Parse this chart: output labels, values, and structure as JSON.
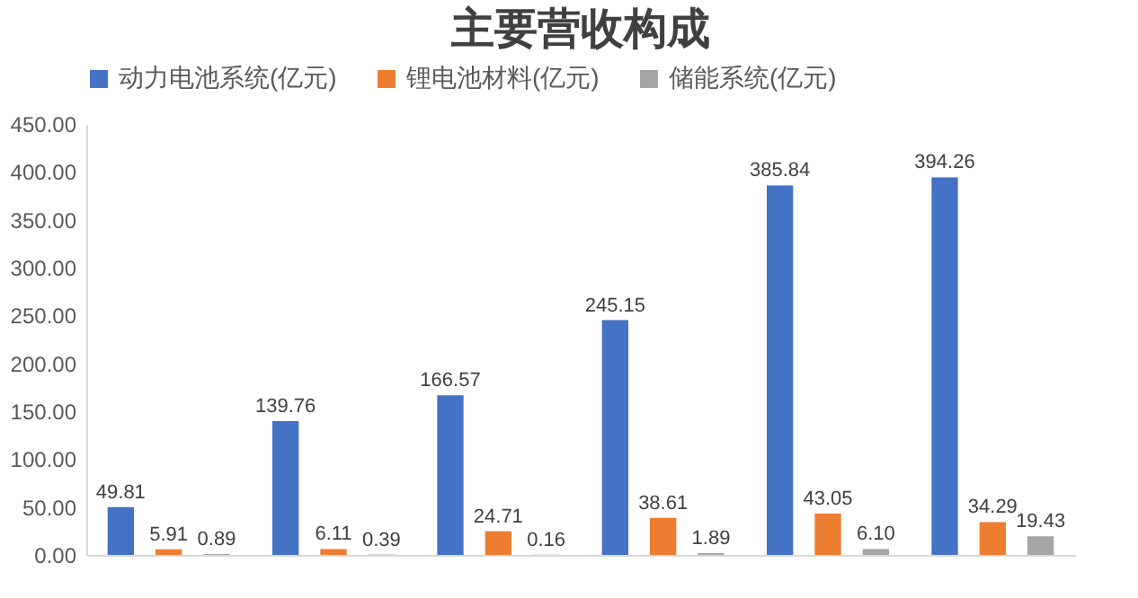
{
  "chart_data": {
    "type": "bar",
    "title": "主要营收构成",
    "categories": [
      null,
      null,
      null,
      null,
      null,
      null
    ],
    "series": [
      {
        "name": "动力电池系统(亿元)",
        "color": "#4472c4",
        "values": [
          49.81,
          139.76,
          166.57,
          245.15,
          385.84,
          394.26
        ],
        "value_labels": [
          "49.81",
          "139.76",
          "166.57",
          "245.15",
          "385.84",
          "394.26"
        ]
      },
      {
        "name": "锂电池材料(亿元)",
        "color": "#ed7d31",
        "values": [
          5.91,
          6.11,
          24.71,
          38.61,
          43.05,
          34.29
        ],
        "value_labels": [
          "5.91",
          "6.11",
          "24.71",
          "38.61",
          "43.05",
          "34.29"
        ]
      },
      {
        "name": "储能系统(亿元)",
        "color": "#a5a5a5",
        "values": [
          0.89,
          0.39,
          0.16,
          1.89,
          6.1,
          19.43
        ],
        "value_labels": [
          "0.89",
          "0.39",
          "0.16",
          "1.89",
          "6.10",
          "19.43"
        ]
      }
    ],
    "ylim": [
      0,
      450
    ],
    "yticks": [
      {
        "value": 0,
        "label": "0.00"
      },
      {
        "value": 50,
        "label": "50.00"
      },
      {
        "value": 100,
        "label": "100.00"
      },
      {
        "value": 150,
        "label": "150.00"
      },
      {
        "value": 200,
        "label": "200.00"
      },
      {
        "value": 250,
        "label": "250.00"
      },
      {
        "value": 300,
        "label": "300.00"
      },
      {
        "value": 350,
        "label": "350.00"
      },
      {
        "value": 400,
        "label": "400.00"
      },
      {
        "value": 450,
        "label": "450.00"
      }
    ],
    "legend": "top"
  }
}
